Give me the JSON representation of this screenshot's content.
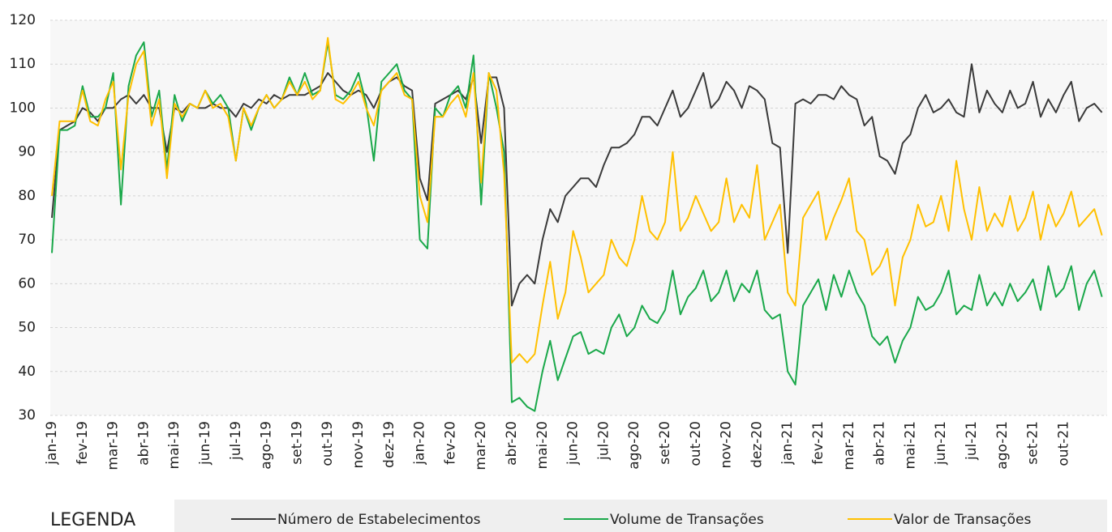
{
  "chart_data": {
    "type": "line",
    "categories": [
      "jan-19",
      null,
      null,
      null,
      "fev-19",
      null,
      null,
      null,
      "mar-19",
      null,
      null,
      null,
      "abr-19",
      null,
      null,
      null,
      "mai-19",
      null,
      null,
      null,
      "jun-19",
      null,
      null,
      null,
      "jul-19",
      null,
      null,
      null,
      "ago-19",
      null,
      null,
      null,
      "set-19",
      null,
      null,
      null,
      "out-19",
      null,
      null,
      null,
      "nov-19",
      null,
      null,
      null,
      "dez-19",
      null,
      null,
      null,
      "jan-20",
      null,
      null,
      null,
      "fev-20",
      null,
      null,
      null,
      "mar-20",
      null,
      null,
      null,
      "abr-20",
      null,
      null,
      null,
      "mai-20",
      null,
      null,
      null,
      "jun-20",
      null,
      null,
      null,
      "jul-20",
      null,
      null,
      null,
      "ago-20",
      null,
      null,
      null,
      "set-20",
      null,
      null,
      null,
      "out-20",
      null,
      null,
      null,
      "nov-20",
      null,
      null,
      null,
      "dez-20",
      null,
      null,
      null,
      "jan-21",
      null,
      null,
      null,
      "fev-21",
      null,
      null,
      null,
      "mar-21",
      null,
      null,
      null,
      "abr-21",
      null,
      null,
      null,
      "mai-21",
      null,
      null,
      null,
      "jun-21",
      null,
      null,
      null,
      "jul-21",
      null,
      null,
      null,
      "ago-21",
      null,
      null,
      null,
      "set-21",
      null,
      null,
      null,
      "out-21",
      null,
      null,
      null,
      null,
      null
    ],
    "series": [
      {
        "name": "Número de Estabelecimentos",
        "color": "#3a3a3a",
        "values": [
          75,
          95,
          96,
          97,
          100,
          99,
          97,
          100,
          100,
          102,
          103,
          101,
          103,
          100,
          100,
          90,
          100,
          99,
          101,
          100,
          100,
          101,
          100,
          100,
          98,
          101,
          100,
          102,
          101,
          103,
          102,
          103,
          103,
          103,
          104,
          105,
          108,
          106,
          104,
          103,
          104,
          103,
          100,
          104,
          106,
          107,
          105,
          104,
          84,
          79,
          101,
          102,
          103,
          104,
          102,
          107,
          92,
          107,
          107,
          100,
          55,
          60,
          62,
          60,
          70,
          77,
          74,
          80,
          82,
          84,
          84,
          82,
          87,
          91,
          91,
          92,
          94,
          98,
          98,
          96,
          100,
          104,
          98,
          100,
          104,
          108,
          100,
          102,
          106,
          104,
          100,
          105,
          104,
          102,
          92,
          91,
          67,
          101,
          102,
          101,
          103,
          103,
          102,
          105,
          103,
          102,
          96,
          98,
          89,
          88,
          85,
          92,
          94,
          100,
          103,
          99,
          100,
          102,
          99,
          98,
          110,
          99,
          104,
          101,
          99,
          104,
          100,
          101,
          106,
          98,
          102,
          99,
          103,
          106,
          97,
          100,
          101,
          99
        ]
      },
      {
        "name": "Volume de Transações",
        "color": "#1aa84a",
        "values": [
          67,
          95,
          95,
          96,
          105,
          98,
          98,
          100,
          108,
          78,
          105,
          112,
          115,
          98,
          104,
          86,
          103,
          97,
          101,
          100,
          104,
          101,
          103,
          100,
          88,
          100,
          95,
          100,
          103,
          100,
          102,
          107,
          103,
          108,
          103,
          104,
          115,
          103,
          102,
          104,
          108,
          101,
          88,
          106,
          108,
          110,
          104,
          102,
          70,
          68,
          100,
          98,
          103,
          105,
          100,
          112,
          78,
          108,
          100,
          90,
          33,
          34,
          32,
          31,
          40,
          47,
          38,
          43,
          48,
          49,
          44,
          45,
          44,
          50,
          53,
          48,
          50,
          55,
          52,
          51,
          54,
          63,
          53,
          57,
          59,
          63,
          56,
          58,
          63,
          56,
          60,
          58,
          63,
          54,
          52,
          53,
          40,
          37,
          55,
          58,
          61,
          54,
          62,
          57,
          63,
          58,
          55,
          48,
          46,
          48,
          42,
          47,
          50,
          57,
          54,
          55,
          58,
          63,
          53,
          55,
          54,
          62,
          55,
          58,
          55,
          60,
          56,
          58,
          61,
          54,
          64,
          57,
          59,
          64,
          54,
          60,
          63,
          57
        ]
      },
      {
        "name": "Valor de Transações",
        "color": "#ffc000",
        "values": [
          80,
          97,
          97,
          97,
          104,
          97,
          96,
          102,
          106,
          86,
          103,
          110,
          113,
          96,
          102,
          84,
          101,
          98,
          101,
          100,
          104,
          100,
          101,
          98,
          88,
          100,
          96,
          100,
          103,
          100,
          102,
          106,
          103,
          106,
          102,
          104,
          116,
          102,
          101,
          103,
          106,
          100,
          96,
          104,
          106,
          108,
          103,
          102,
          80,
          74,
          98,
          98,
          101,
          103,
          98,
          108,
          83,
          108,
          104,
          85,
          42,
          44,
          42,
          44,
          55,
          65,
          52,
          58,
          72,
          66,
          58,
          60,
          62,
          70,
          66,
          64,
          70,
          80,
          72,
          70,
          74,
          90,
          72,
          75,
          80,
          76,
          72,
          74,
          84,
          74,
          78,
          75,
          87,
          70,
          74,
          78,
          58,
          55,
          75,
          78,
          81,
          70,
          75,
          79,
          84,
          72,
          70,
          62,
          64,
          68,
          55,
          66,
          70,
          78,
          73,
          74,
          80,
          72,
          88,
          77,
          70,
          82,
          72,
          76,
          73,
          80,
          72,
          75,
          81,
          70,
          78,
          73,
          76,
          81,
          73,
          75,
          77,
          71
        ]
      }
    ],
    "ylim": [
      30,
      120
    ],
    "yticks": [
      30,
      40,
      50,
      60,
      70,
      80,
      90,
      100,
      110,
      120
    ],
    "grid": true,
    "legend_title": "LEGENDA"
  }
}
